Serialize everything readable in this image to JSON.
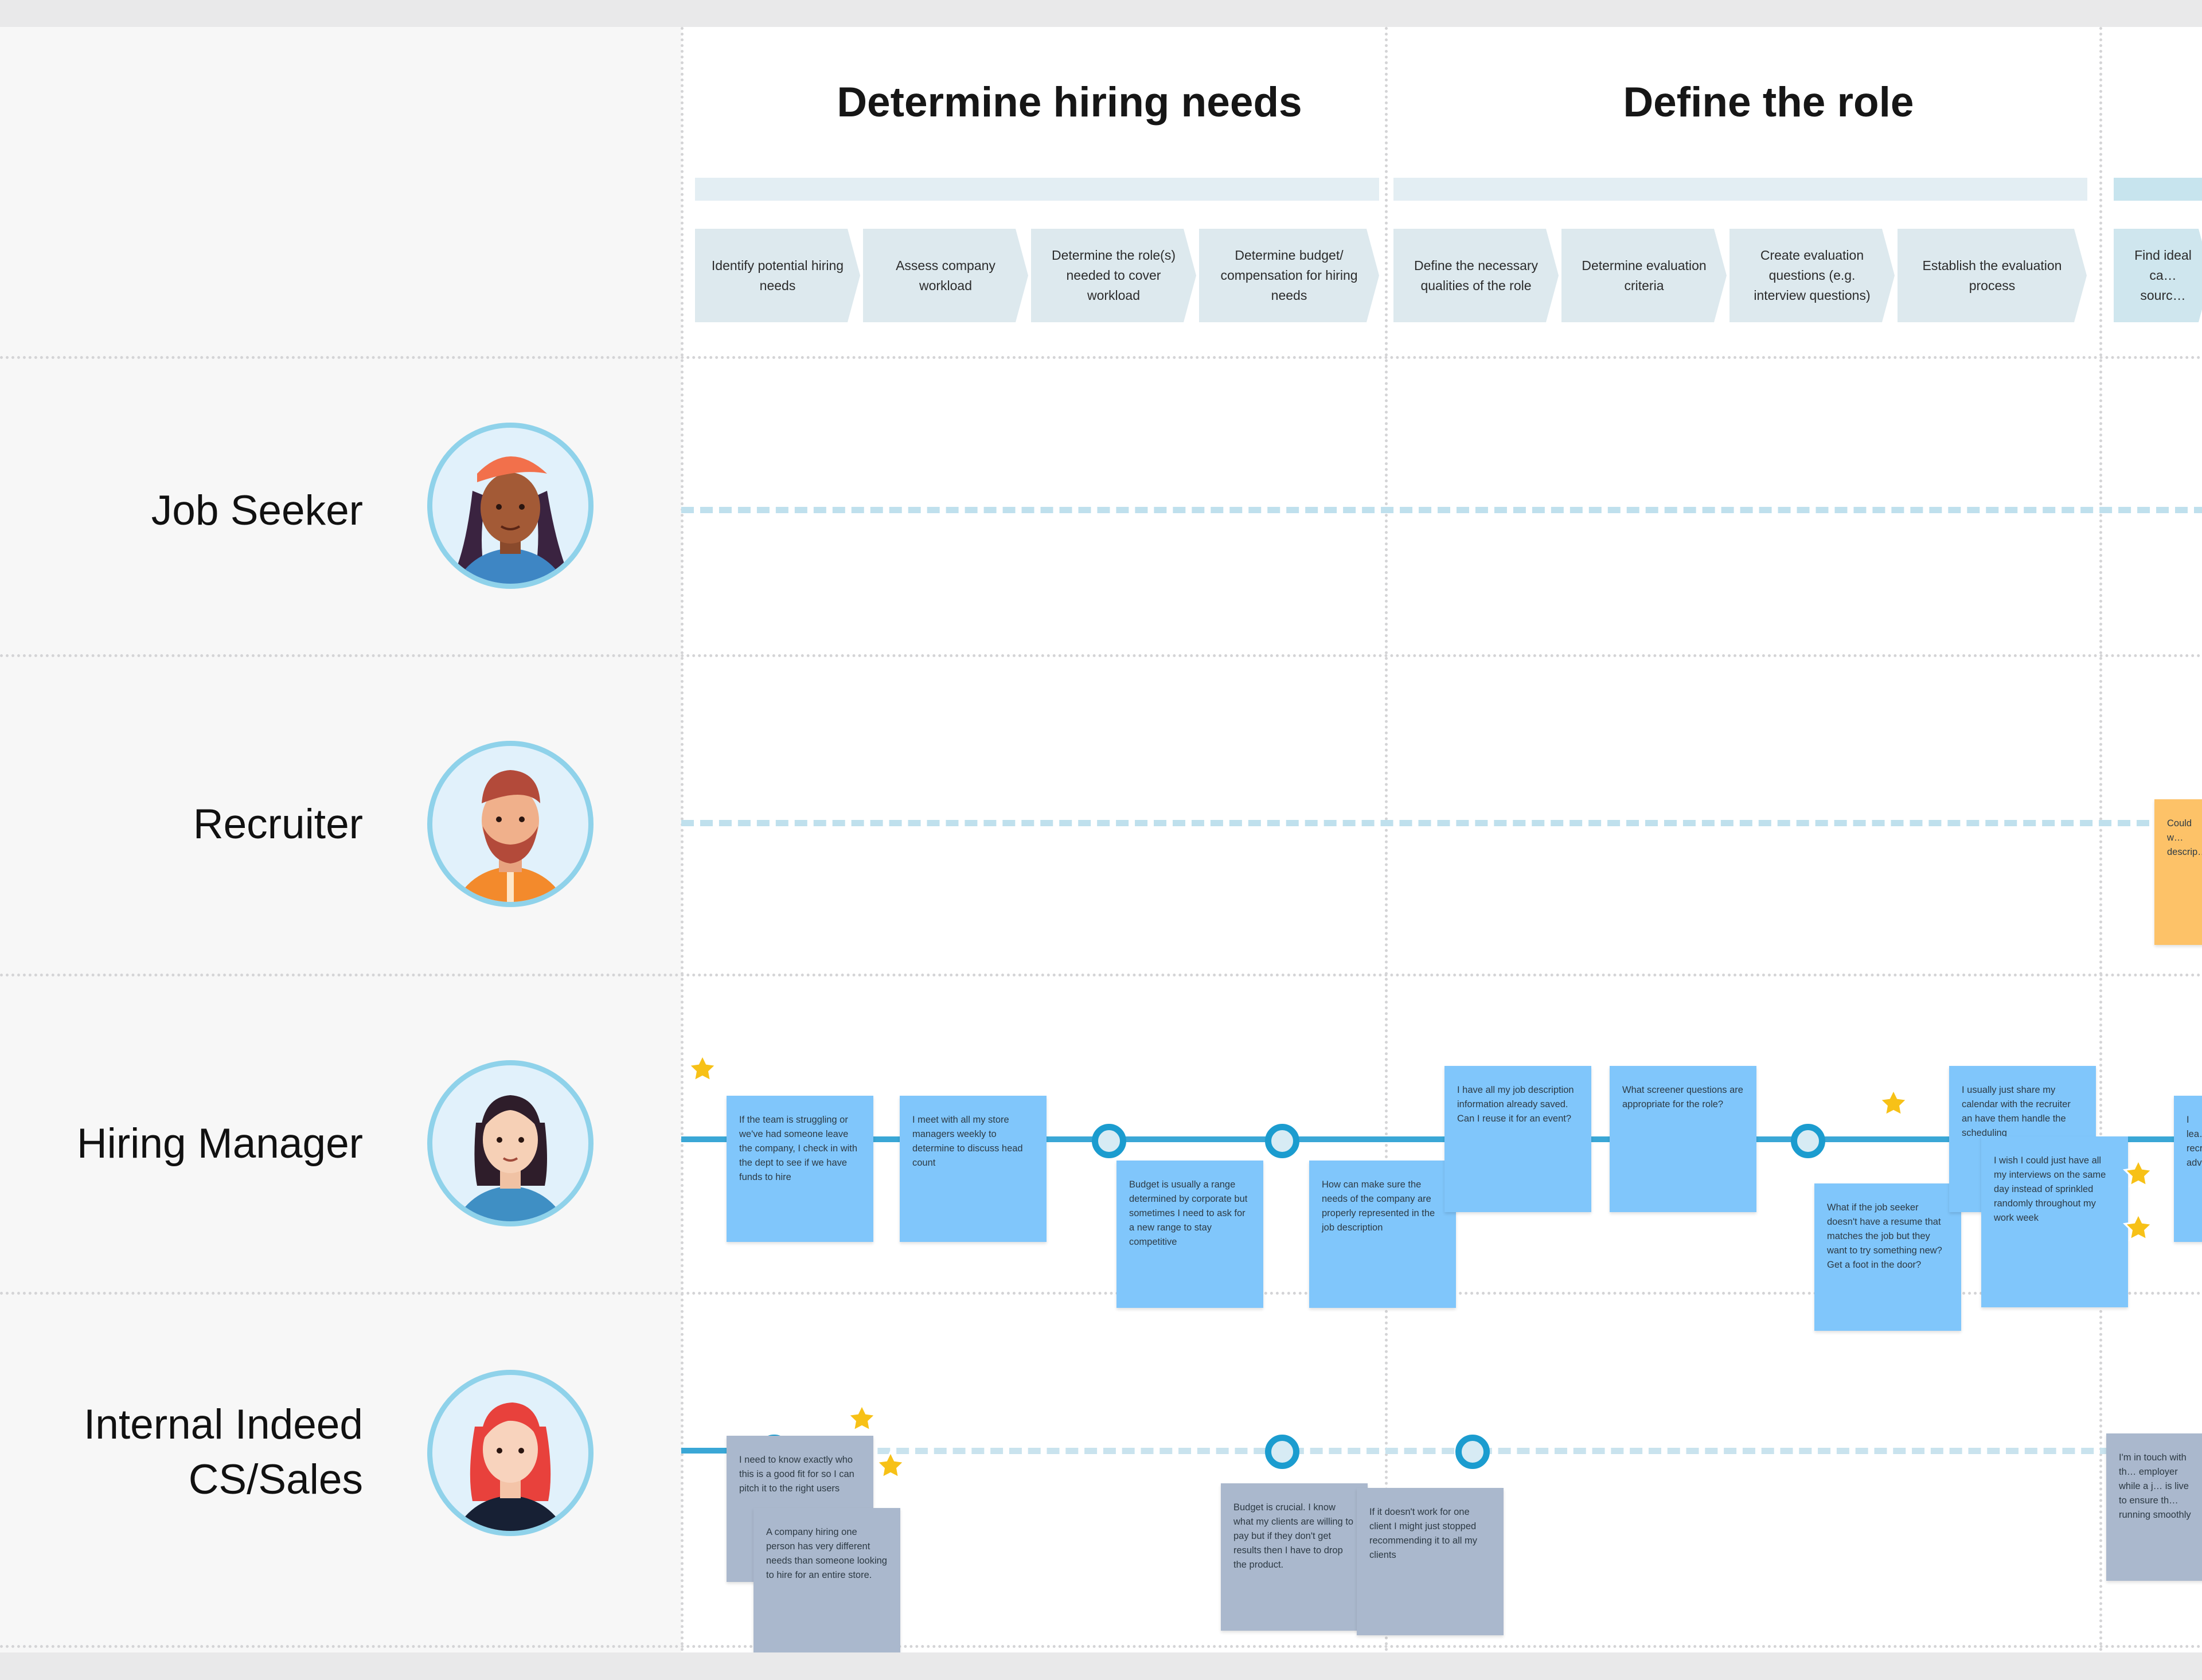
{
  "phases": [
    {
      "title": "Determine hiring needs",
      "steps": [
        "Identify potential hiring needs",
        "Assess company workload",
        "Determine the role(s) needed to cover workload",
        "Determine budget/ compensation for hiring needs"
      ]
    },
    {
      "title": "Define the role",
      "steps": [
        "Define the necessary qualities of the role",
        "Determine evaluation criteria",
        "Create evaluation questions (e.g. interview questions)",
        "Establish the evaluation process"
      ]
    },
    {
      "title": "",
      "steps": [
        "Find ideal ca… sourc…"
      ]
    }
  ],
  "roles": [
    {
      "name": "Job Seeker",
      "avatar": "job-seeker-avatar"
    },
    {
      "name": "Recruiter",
      "avatar": "recruiter-avatar"
    },
    {
      "name": "Hiring Manager",
      "avatar": "hiring-manager-avatar"
    },
    {
      "name": "Internal Indeed CS/Sales",
      "avatar": "internal-indeed-avatar"
    }
  ],
  "notes": {
    "recruiter": [
      {
        "text": "Could w… descrip…",
        "color": "orange"
      }
    ],
    "hiring_manager": [
      {
        "text": "If the team is struggling or we've had someone leave the company, I check in with the dept to see if we have funds to hire",
        "color": "blue"
      },
      {
        "text": "I meet with all my store managers weekly to determine to discuss head count",
        "color": "blue"
      },
      {
        "text": "Budget is usually a range determined by corporate but sometimes I need to ask for a new range to stay competitive",
        "color": "blue"
      },
      {
        "text": "How can make sure the needs of the company are properly represented in the job description",
        "color": "blue"
      },
      {
        "text": "I have all my job description information already saved. Can I reuse it for an event?",
        "color": "blue"
      },
      {
        "text": "What screener questions are appropriate for the role?",
        "color": "blue"
      },
      {
        "text": "What if the job seeker doesn't have a resume that matches the job but they want to try something new? Get a foot in the door?",
        "color": "blue"
      },
      {
        "text": "I usually just share my calendar with the recruiter an have them handle the scheduling",
        "color": "blue"
      },
      {
        "text": "I wish I could just have all my interviews on the same day instead of sprinkled  randomly throughout my work week",
        "color": "blue"
      },
      {
        "text": "I lea… recr… adv…",
        "color": "blue"
      }
    ],
    "internal": [
      {
        "text": "I need to know exactly who this is a good fit for so I can pitch it to the right users",
        "color": "gray"
      },
      {
        "text": "A company hiring one person has very different needs than someone looking to hire for an entire store.",
        "color": "gray"
      },
      {
        "text": "Budget is crucial. I know what my clients are willing to pay but if they don't get results then I have to drop the product.",
        "color": "gray"
      },
      {
        "text": "If it doesn't work for one client I might just stopped recommending it to all my clients",
        "color": "gray"
      },
      {
        "text": "I'm in touch with th… employer while a j… is live to ensure th… running smoothly",
        "color": "gray"
      }
    ]
  },
  "colors": {
    "lane_line": "#3aa7d6",
    "sticky_blue": "#80c6fb",
    "sticky_gray": "#aab8cd",
    "sticky_orange": "#fdc268",
    "star": "#f7c117",
    "avatar_ring": "#8fd2ea"
  }
}
